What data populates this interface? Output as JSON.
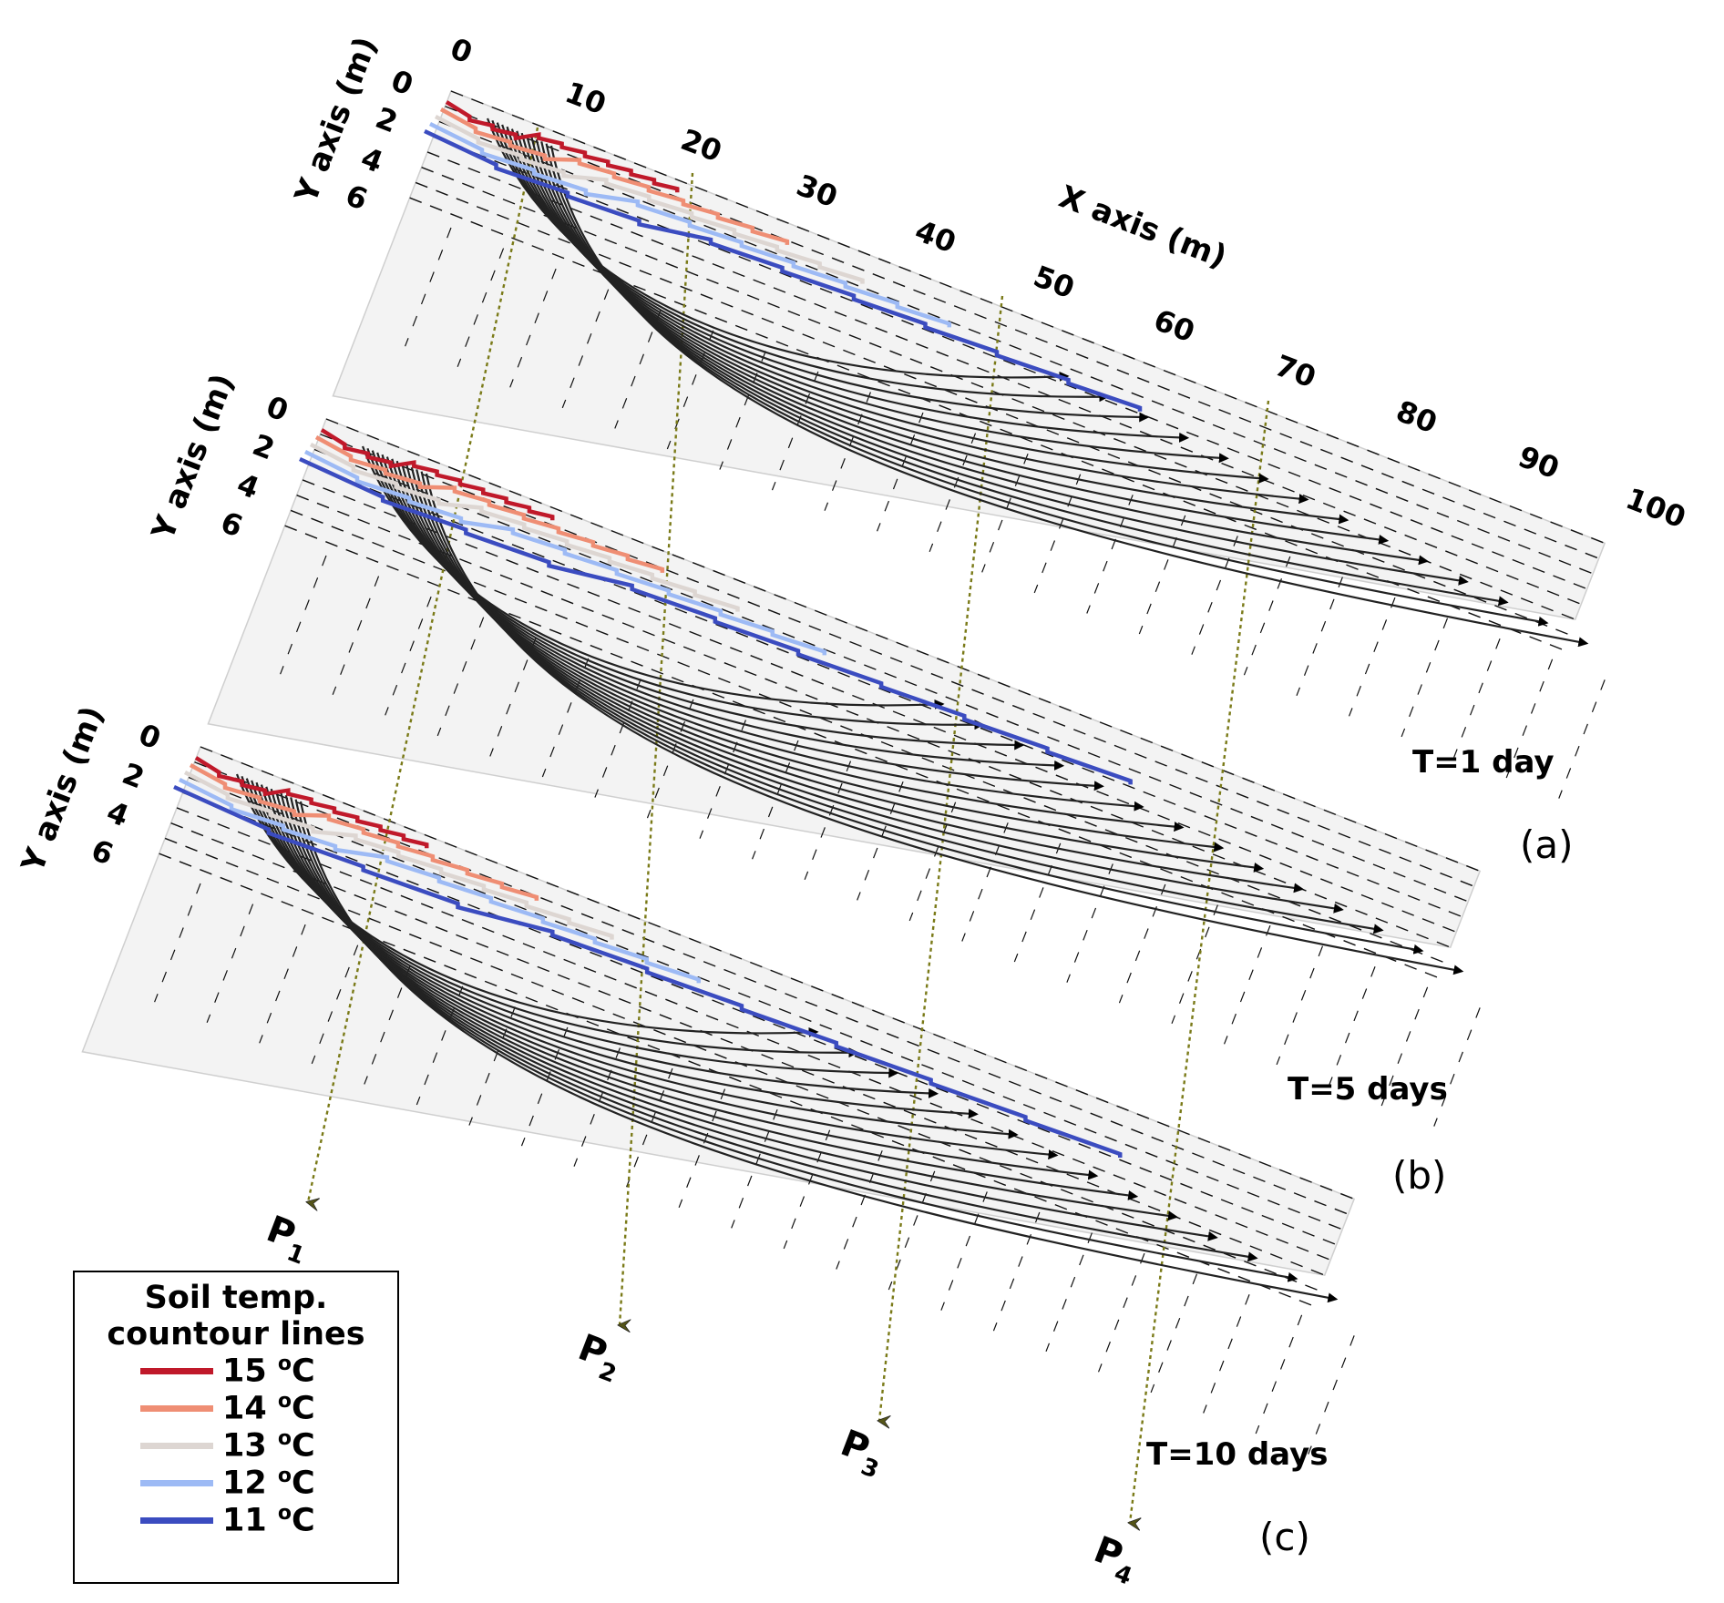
{
  "figure": {
    "x_axis_label": "X axis (m)",
    "y_axis_label": "Y axis (m)",
    "x_ticks": [
      "0",
      "10",
      "20",
      "30",
      "40",
      "50",
      "60",
      "70",
      "80",
      "90",
      "100"
    ],
    "y_ticks": [
      "0",
      "2",
      "4",
      "6"
    ],
    "points": [
      "P",
      "P",
      "P",
      "P"
    ],
    "point_subscripts": [
      "1",
      "2",
      "3",
      "4"
    ]
  },
  "panels": [
    {
      "id": "a",
      "time_label": "T=1 day",
      "panel_label": "(a)"
    },
    {
      "id": "b",
      "time_label": "T=5 days",
      "panel_label": "(b)"
    },
    {
      "id": "c",
      "time_label": "T=10 days",
      "panel_label": "(c)"
    }
  ],
  "legend": {
    "title_line1": "Soil temp.",
    "title_line2": "countour lines",
    "items": [
      {
        "label": "15 ",
        "unit": "o",
        "unit_tail": "C",
        "color": "#c0192a"
      },
      {
        "label": "14 ",
        "unit": "o",
        "unit_tail": "C",
        "color": "#ef8e74"
      },
      {
        "label": "13 ",
        "unit": "o",
        "unit_tail": "C",
        "color": "#ddd6d2"
      },
      {
        "label": "12 ",
        "unit": "o",
        "unit_tail": "C",
        "color": "#9dbaf5"
      },
      {
        "label": "11 ",
        "unit": "o",
        "unit_tail": "C",
        "color": "#3b4cc0"
      }
    ]
  },
  "colors": {
    "streamline": "#222222",
    "grid_dash": "#111111",
    "plane_fill": "#f3f3f3",
    "projection_line": "#7a7a18"
  }
}
